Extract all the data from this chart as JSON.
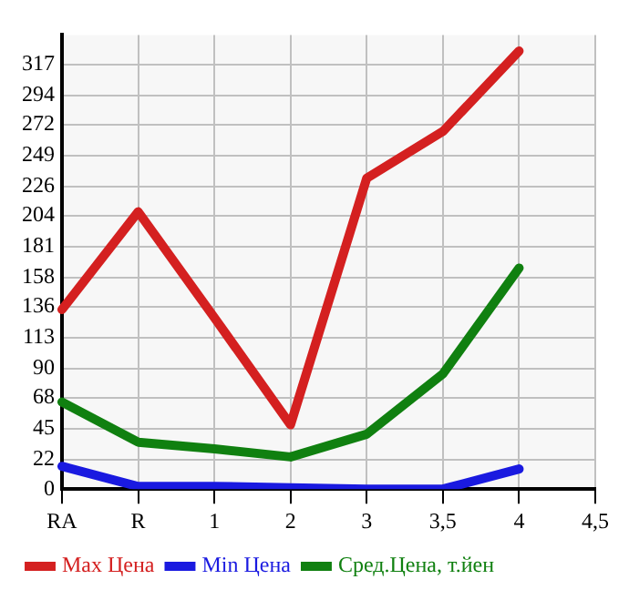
{
  "chart_data": {
    "type": "line",
    "categories": [
      "RA",
      "R",
      "1",
      "2",
      "3",
      "3,5",
      "4",
      "4,5"
    ],
    "series": [
      {
        "name": "Max Цена",
        "color": "#d42020",
        "values": [
          134,
          207,
          128,
          48,
          232,
          267,
          327,
          null
        ]
      },
      {
        "name": "Min Цена",
        "color": "#1a1ae0",
        "values": [
          17,
          2,
          2,
          1,
          0,
          0,
          15,
          null
        ]
      },
      {
        "name": "Сред.Цена, т.йен",
        "color": "#108010",
        "values": [
          65,
          35,
          30,
          24,
          41,
          86,
          165,
          null
        ]
      }
    ],
    "ylim": [
      0,
      339
    ],
    "yticks": [
      0,
      22,
      45,
      68,
      90,
      113,
      136,
      158,
      181,
      204,
      226,
      249,
      272,
      294,
      317
    ],
    "grid": true,
    "legend": "bottom",
    "marker": "none",
    "line_style": "solid"
  }
}
